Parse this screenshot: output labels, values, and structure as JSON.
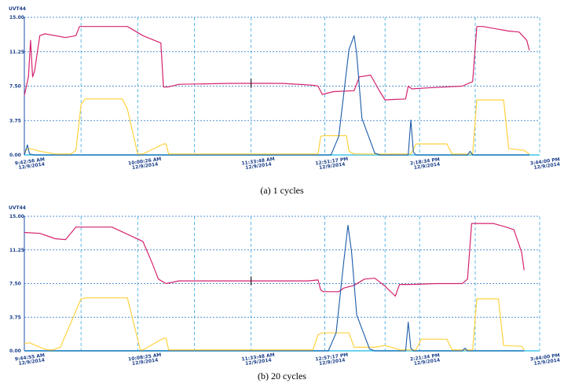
{
  "chart_data": [
    {
      "type": "line",
      "unit_label": "UVT44",
      "caption": "(a) 1 cycles",
      "yticks": [
        "0.00",
        "3.75",
        "7.50",
        "11.25",
        "15.00"
      ],
      "ylim": [
        0,
        15
      ],
      "grid": true,
      "xticks": [
        {
          "time": "9:42:56 AM",
          "date": "12/9/2014"
        },
        {
          "time": "10:00:26 AM",
          "date": "12/9/2014"
        },
        {
          "time": "11:33:48 AM",
          "date": "12/9/2014"
        },
        {
          "time": "12:51:17 PM",
          "date": "12/9/2014"
        },
        {
          "time": "2:18:34 PM",
          "date": "12/9/2014"
        },
        {
          "time": "3:44:00 PM",
          "date": "12/9/2014"
        }
      ],
      "xlim": [
        0,
        1
      ],
      "series": [
        {
          "color": "#d4236e",
          "x": [
            0.0,
            0.008,
            0.012,
            0.016,
            0.02,
            0.03,
            0.04,
            0.08,
            0.1,
            0.107,
            0.115,
            0.2,
            0.23,
            0.265,
            0.27,
            0.278,
            0.3,
            0.4,
            0.5,
            0.56,
            0.57,
            0.578,
            0.6,
            0.64,
            0.65,
            0.672,
            0.69,
            0.7,
            0.74,
            0.745,
            0.752,
            0.78,
            0.85,
            0.87,
            0.878,
            0.89,
            0.94,
            0.96,
            0.975,
            0.98
          ],
          "y": [
            6.5,
            8.5,
            12.5,
            8.5,
            9.2,
            13.0,
            13.2,
            12.8,
            13.0,
            14.0,
            14.0,
            14.0,
            13.0,
            12.2,
            7.4,
            7.4,
            7.7,
            7.8,
            7.8,
            7.6,
            7.5,
            6.6,
            6.9,
            7.0,
            8.5,
            8.7,
            6.9,
            6.0,
            6.1,
            7.5,
            7.2,
            7.3,
            7.5,
            8.0,
            14.0,
            14.0,
            13.5,
            13.4,
            12.5,
            11.4
          ]
        },
        {
          "color": "#ffd23f",
          "x": [
            0.0,
            0.005,
            0.01,
            0.03,
            0.06,
            0.09,
            0.1,
            0.11,
            0.118,
            0.19,
            0.2,
            0.22,
            0.23,
            0.27,
            0.275,
            0.28,
            0.3,
            0.57,
            0.575,
            0.58,
            0.625,
            0.63,
            0.64,
            0.7,
            0.75,
            0.76,
            0.82,
            0.83,
            0.86,
            0.87,
            0.878,
            0.93,
            0.94,
            0.97,
            0.98
          ],
          "y": [
            0.3,
            0.6,
            0.7,
            0.4,
            0.1,
            0.1,
            0.5,
            5.5,
            6.1,
            6.1,
            5.0,
            0.1,
            0.1,
            1.2,
            1.2,
            0.1,
            0.1,
            0.1,
            2.0,
            2.1,
            2.1,
            0.4,
            0.1,
            0.1,
            0.1,
            1.2,
            1.2,
            0.1,
            0.1,
            0.1,
            6.0,
            6.0,
            0.7,
            0.5,
            0.1
          ]
        },
        {
          "color": "#1b5aa8",
          "x": [
            0.0,
            0.006,
            0.01,
            0.02,
            0.3,
            0.595,
            0.61,
            0.63,
            0.64,
            0.645,
            0.655,
            0.68,
            0.69,
            0.7,
            0.745,
            0.75,
            0.755,
            0.76,
            0.86,
            0.865,
            0.87,
            0.98
          ],
          "y": [
            0.0,
            1.1,
            0.1,
            0.0,
            0.0,
            0.0,
            2.0,
            11.5,
            13.0,
            11.0,
            4.0,
            0.2,
            0.0,
            0.0,
            0.0,
            3.8,
            0.3,
            0.0,
            0.0,
            0.4,
            0.0,
            0.0
          ]
        }
      ]
    },
    {
      "type": "line",
      "unit_label": "UVT44",
      "caption": "(b) 20 cycles",
      "yticks": [
        "0.00",
        "3.75",
        "7.50",
        "11.25",
        "15.00"
      ],
      "ylim": [
        0,
        15
      ],
      "grid": true,
      "xticks": [
        {
          "time": "9:44:55 AM",
          "date": "12/9/2014"
        },
        {
          "time": "10:08:25 AM",
          "date": "12/9/2014"
        },
        {
          "time": "11:33:48 AM",
          "date": "12/9/2014"
        },
        {
          "time": "12:57:17 PM",
          "date": "12/9/2014"
        },
        {
          "time": "2:21:34 PM",
          "date": "12/9/2014"
        },
        {
          "time": "3:44:00 PM",
          "date": "12/9/2014"
        }
      ],
      "xlim": [
        0,
        1
      ],
      "series": [
        {
          "color": "#d4236e",
          "x": [
            0.0,
            0.03,
            0.06,
            0.08,
            0.1,
            0.17,
            0.2,
            0.23,
            0.245,
            0.25,
            0.26,
            0.275,
            0.3,
            0.4,
            0.55,
            0.57,
            0.575,
            0.58,
            0.61,
            0.62,
            0.64,
            0.66,
            0.68,
            0.7,
            0.72,
            0.728,
            0.75,
            0.8,
            0.85,
            0.86,
            0.868,
            0.91,
            0.935,
            0.95,
            0.965,
            0.97
          ],
          "y": [
            13.2,
            13.1,
            12.5,
            12.4,
            13.8,
            13.8,
            13.0,
            12.2,
            10.2,
            9.5,
            8.0,
            7.5,
            7.8,
            7.8,
            7.8,
            7.9,
            6.8,
            6.6,
            6.6,
            7.0,
            7.3,
            8.0,
            8.1,
            7.2,
            6.1,
            7.4,
            7.4,
            7.5,
            7.5,
            8.0,
            14.2,
            14.2,
            13.8,
            13.5,
            11.0,
            9.0
          ]
        },
        {
          "color": "#ffd23f",
          "x": [
            0.0,
            0.01,
            0.03,
            0.045,
            0.055,
            0.07,
            0.11,
            0.12,
            0.2,
            0.225,
            0.23,
            0.27,
            0.275,
            0.28,
            0.3,
            0.56,
            0.57,
            0.578,
            0.58,
            0.63,
            0.64,
            0.68,
            0.7,
            0.73,
            0.76,
            0.77,
            0.82,
            0.83,
            0.86,
            0.87,
            0.878,
            0.92,
            0.93,
            0.965,
            0.97
          ],
          "y": [
            0.8,
            0.9,
            0.4,
            0.1,
            0.1,
            0.4,
            5.8,
            5.9,
            5.9,
            0.1,
            0.1,
            1.4,
            1.4,
            0.1,
            0.1,
            0.1,
            1.8,
            2.0,
            2.0,
            2.0,
            0.4,
            0.4,
            0.6,
            0.1,
            0.1,
            1.3,
            1.3,
            0.1,
            0.1,
            0.1,
            5.8,
            5.8,
            0.6,
            0.5,
            0.1
          ]
        },
        {
          "color": "#1b5aa8",
          "x": [
            0.0,
            0.3,
            0.59,
            0.605,
            0.62,
            0.628,
            0.635,
            0.645,
            0.67,
            0.68,
            0.74,
            0.745,
            0.75,
            0.755,
            0.85,
            0.855,
            0.86,
            0.97
          ],
          "y": [
            0.0,
            0.0,
            0.0,
            2.0,
            10.0,
            14.0,
            11.0,
            4.0,
            0.2,
            0.0,
            0.0,
            3.2,
            0.3,
            0.0,
            0.0,
            0.3,
            0.0,
            0.0
          ]
        }
      ]
    }
  ]
}
